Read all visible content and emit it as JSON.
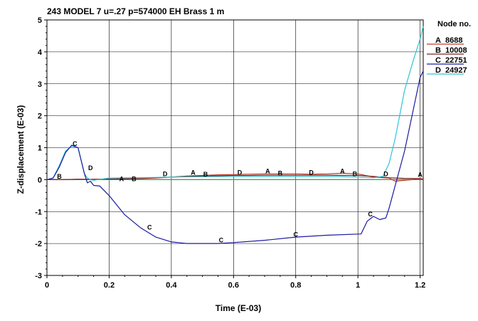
{
  "chart_data": {
    "type": "line",
    "title": "243 MODEL 7 u=.27 p=574000 EH Brass 1 m",
    "xlabel": "Time (E-03)",
    "ylabel": "Z-displacement (E-03)",
    "xlim": [
      0,
      1.21
    ],
    "ylim": [
      -3,
      5
    ],
    "xticks": [
      0,
      0.2,
      0.4,
      0.6,
      0.8,
      1,
      1.2
    ],
    "xtick_labels": [
      "0",
      "0.2",
      "0.4",
      "0.6",
      "0.8",
      "1",
      "1.2"
    ],
    "yticks": [
      -3,
      -2,
      -1,
      0,
      1,
      2,
      3,
      4,
      5
    ],
    "ytick_labels": [
      "-3",
      "-2",
      "-1",
      "0",
      "1",
      "2",
      "3",
      "4",
      "5"
    ],
    "grid": true,
    "legend_title": "Node no.",
    "legend_position": "right",
    "series": [
      {
        "name": "8688",
        "marker": "A",
        "color": "#c0392b",
        "x": [
          0,
          0.05,
          0.1,
          0.15,
          0.2,
          0.25,
          0.3,
          0.35,
          0.4,
          0.45,
          0.5,
          0.55,
          0.6,
          0.65,
          0.7,
          0.75,
          0.8,
          0.85,
          0.9,
          0.95,
          1.0,
          1.05,
          1.1,
          1.12,
          1.15,
          1.2,
          1.21
        ],
        "y": [
          0,
          0,
          0.01,
          0,
          0.02,
          0.01,
          0.03,
          0.05,
          0.08,
          0.11,
          0.13,
          0.15,
          0.16,
          0.17,
          0.18,
          0.18,
          0.18,
          0.17,
          0.18,
          0.2,
          0.18,
          0.08,
          0.05,
          -0.05,
          -0.02,
          0.02,
          0
        ],
        "label_points": [
          [
            0.24,
            0.02
          ],
          [
            0.47,
            0.22
          ],
          [
            0.71,
            0.27
          ],
          [
            0.95,
            0.26
          ],
          [
            1.2,
            0.15
          ]
        ]
      },
      {
        "name": "10008",
        "marker": "B",
        "color": "#7b241c",
        "x": [
          0,
          0.05,
          0.1,
          0.15,
          0.2,
          0.25,
          0.3,
          0.35,
          0.4,
          0.45,
          0.5,
          0.55,
          0.6,
          0.65,
          0.7,
          0.75,
          0.8,
          0.85,
          0.9,
          0.95,
          1.0,
          1.05,
          1.1,
          1.15,
          1.2,
          1.21
        ],
        "y": [
          0,
          0,
          0.01,
          0.01,
          0.02,
          0.03,
          0.05,
          0.06,
          0.08,
          0.1,
          0.11,
          0.12,
          0.13,
          0.13,
          0.14,
          0.14,
          0.14,
          0.14,
          0.14,
          0.13,
          0.13,
          0.1,
          0.06,
          0.04,
          0.03,
          0.02
        ],
        "label_points": [
          [
            0.04,
            0.1
          ],
          [
            0.28,
            0.02
          ],
          [
            0.51,
            0.16
          ],
          [
            0.75,
            0.2
          ],
          [
            0.99,
            0.18
          ]
        ]
      },
      {
        "name": "22751",
        "marker": "C",
        "color": "#1a1aa0",
        "x": [
          0,
          0.02,
          0.04,
          0.06,
          0.08,
          0.1,
          0.11,
          0.12,
          0.13,
          0.14,
          0.15,
          0.17,
          0.2,
          0.25,
          0.3,
          0.35,
          0.4,
          0.45,
          0.5,
          0.55,
          0.6,
          0.7,
          0.8,
          0.9,
          1.01,
          1.03,
          1.05,
          1.07,
          1.09,
          1.1,
          1.15,
          1.2,
          1.21
        ],
        "y": [
          0,
          0.05,
          0.4,
          0.85,
          1.08,
          1.0,
          0.6,
          0.2,
          -0.1,
          -0.05,
          -0.18,
          -0.2,
          -0.5,
          -1.1,
          -1.5,
          -1.8,
          -1.95,
          -2.0,
          -2.0,
          -2.0,
          -1.97,
          -1.9,
          -1.8,
          -1.74,
          -1.7,
          -1.3,
          -1.15,
          -1.25,
          -1.2,
          -0.9,
          0.9,
          3.2,
          3.4
        ],
        "label_points": [
          [
            0.09,
            1.12
          ],
          [
            0.33,
            -1.5
          ],
          [
            0.56,
            -1.9
          ],
          [
            0.8,
            -1.72
          ],
          [
            1.04,
            -1.08
          ]
        ]
      },
      {
        "name": "24927",
        "marker": "D",
        "color": "#2ec4d6",
        "x": [
          0,
          0.02,
          0.04,
          0.06,
          0.08,
          0.1,
          0.11,
          0.12,
          0.13,
          0.14,
          0.15,
          0.2,
          0.3,
          0.4,
          0.5,
          0.6,
          0.7,
          0.8,
          0.9,
          1.0,
          1.05,
          1.08,
          1.1,
          1.12,
          1.15,
          1.18,
          1.2,
          1.21
        ],
        "y": [
          0,
          0.05,
          0.45,
          0.9,
          1.05,
          1.0,
          0.6,
          0.2,
          0.05,
          0.0,
          -0.02,
          0.05,
          0.06,
          0.08,
          0.09,
          0.1,
          0.1,
          0.1,
          0.1,
          0.08,
          0.06,
          0.1,
          0.5,
          1.3,
          2.8,
          3.8,
          4.4,
          4.8
        ],
        "label_points": [
          [
            0.14,
            0.36
          ],
          [
            0.38,
            0.18
          ],
          [
            0.62,
            0.22
          ],
          [
            0.85,
            0.22
          ],
          [
            1.09,
            0.18
          ]
        ]
      },
      {
        "name": "",
        "marker": "",
        "color": "#27ae60",
        "x": [
          0,
          0.2,
          0.4,
          0.6,
          0.8,
          1.0,
          1.2,
          1.21
        ],
        "y": [
          0,
          0,
          0,
          0,
          0,
          0,
          0,
          0
        ]
      }
    ]
  }
}
